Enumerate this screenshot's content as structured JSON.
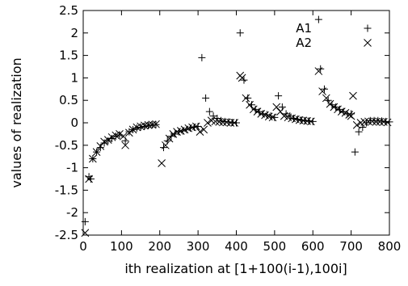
{
  "chart_data": {
    "type": "scatter",
    "xlabel": "ith realization at [1+100(i-1),100i]",
    "ylabel": "values of realization",
    "xlim": [
      0,
      800
    ],
    "ylim": [
      -2.5,
      2.5
    ],
    "xticks": [
      "0",
      "100",
      "200",
      "300",
      "400",
      "500",
      "600",
      "700",
      "800"
    ],
    "yticks": [
      "2.5",
      "2",
      "1.5",
      "1",
      "0.5",
      "0",
      "-0.5",
      "-1",
      "-1.5",
      "-2",
      "-2.5"
    ],
    "xtick_values": [
      0,
      100,
      200,
      300,
      400,
      500,
      600,
      700,
      800
    ],
    "ytick_values": [
      2.5,
      2,
      1.5,
      1,
      0.5,
      0,
      -0.5,
      -1,
      -1.5,
      -2,
      -2.5
    ],
    "grid": false,
    "legend_position": "top-right",
    "series": [
      {
        "name": "A1",
        "marker": "plus",
        "points": [
          [
            5,
            -2.2
          ],
          [
            15,
            -1.2
          ],
          [
            20,
            -1.25
          ],
          [
            25,
            -0.8
          ],
          [
            35,
            -0.65
          ],
          [
            45,
            -0.55
          ],
          [
            55,
            -0.45
          ],
          [
            65,
            -0.4
          ],
          [
            75,
            -0.35
          ],
          [
            85,
            -0.3
          ],
          [
            95,
            -0.27
          ],
          [
            110,
            -0.4
          ],
          [
            120,
            -0.2
          ],
          [
            130,
            -0.15
          ],
          [
            140,
            -0.12
          ],
          [
            150,
            -0.1
          ],
          [
            160,
            -0.08
          ],
          [
            170,
            -0.06
          ],
          [
            180,
            -0.05
          ],
          [
            190,
            -0.04
          ],
          [
            210,
            -0.55
          ],
          [
            220,
            -0.4
          ],
          [
            230,
            -0.3
          ],
          [
            240,
            -0.25
          ],
          [
            250,
            -0.2
          ],
          [
            260,
            -0.18
          ],
          [
            270,
            -0.15
          ],
          [
            280,
            -0.12
          ],
          [
            290,
            -0.1
          ],
          [
            300,
            -0.08
          ],
          [
            310,
            1.45
          ],
          [
            320,
            0.55
          ],
          [
            330,
            0.25
          ],
          [
            340,
            0.15
          ],
          [
            350,
            0.1
          ],
          [
            360,
            0.05
          ],
          [
            370,
            0.03
          ],
          [
            380,
            0.02
          ],
          [
            390,
            0.01
          ],
          [
            400,
            0.0
          ],
          [
            410,
            2.0
          ],
          [
            420,
            0.95
          ],
          [
            430,
            0.55
          ],
          [
            440,
            0.4
          ],
          [
            450,
            0.3
          ],
          [
            460,
            0.25
          ],
          [
            470,
            0.2
          ],
          [
            480,
            0.18
          ],
          [
            490,
            0.15
          ],
          [
            500,
            0.12
          ],
          [
            510,
            0.6
          ],
          [
            520,
            0.35
          ],
          [
            530,
            0.2
          ],
          [
            540,
            0.15
          ],
          [
            550,
            0.1
          ],
          [
            560,
            0.08
          ],
          [
            570,
            0.06
          ],
          [
            580,
            0.05
          ],
          [
            590,
            0.04
          ],
          [
            600,
            0.03
          ],
          [
            615,
            2.3
          ],
          [
            620,
            1.2
          ],
          [
            630,
            0.75
          ],
          [
            640,
            0.5
          ],
          [
            650,
            0.4
          ],
          [
            660,
            0.35
          ],
          [
            670,
            0.3
          ],
          [
            680,
            0.25
          ],
          [
            690,
            0.2
          ],
          [
            700,
            0.2
          ],
          [
            710,
            -0.65
          ],
          [
            720,
            -0.2
          ],
          [
            730,
            -0.1
          ],
          [
            740,
            0.0
          ],
          [
            750,
            0.05
          ],
          [
            760,
            0.05
          ],
          [
            770,
            0.05
          ],
          [
            780,
            0.04
          ],
          [
            790,
            0.03
          ],
          [
            800,
            0.02
          ]
        ]
      },
      {
        "name": "A2",
        "marker": "cross",
        "points": [
          [
            5,
            -2.45
          ],
          [
            15,
            -1.25
          ],
          [
            25,
            -0.8
          ],
          [
            35,
            -0.65
          ],
          [
            45,
            -0.52
          ],
          [
            55,
            -0.42
          ],
          [
            65,
            -0.38
          ],
          [
            75,
            -0.32
          ],
          [
            85,
            -0.28
          ],
          [
            95,
            -0.25
          ],
          [
            105,
            -0.3
          ],
          [
            110,
            -0.5
          ],
          [
            120,
            -0.22
          ],
          [
            130,
            -0.15
          ],
          [
            140,
            -0.1
          ],
          [
            150,
            -0.08
          ],
          [
            160,
            -0.06
          ],
          [
            170,
            -0.05
          ],
          [
            180,
            -0.04
          ],
          [
            190,
            -0.03
          ],
          [
            205,
            -0.9
          ],
          [
            215,
            -0.5
          ],
          [
            225,
            -0.35
          ],
          [
            235,
            -0.25
          ],
          [
            245,
            -0.2
          ],
          [
            255,
            -0.18
          ],
          [
            265,
            -0.15
          ],
          [
            275,
            -0.12
          ],
          [
            285,
            -0.1
          ],
          [
            295,
            -0.08
          ],
          [
            305,
            -0.2
          ],
          [
            315,
            -0.15
          ],
          [
            325,
            0.0
          ],
          [
            335,
            0.05
          ],
          [
            345,
            0.03
          ],
          [
            355,
            0.02
          ],
          [
            365,
            0.01
          ],
          [
            375,
            0.01
          ],
          [
            385,
            0.0
          ],
          [
            395,
            0.0
          ],
          [
            410,
            1.05
          ],
          [
            415,
            1.0
          ],
          [
            425,
            0.55
          ],
          [
            435,
            0.4
          ],
          [
            445,
            0.3
          ],
          [
            455,
            0.25
          ],
          [
            465,
            0.2
          ],
          [
            475,
            0.17
          ],
          [
            485,
            0.14
          ],
          [
            495,
            0.12
          ],
          [
            505,
            0.35
          ],
          [
            515,
            0.25
          ],
          [
            525,
            0.15
          ],
          [
            535,
            0.12
          ],
          [
            545,
            0.1
          ],
          [
            555,
            0.08
          ],
          [
            565,
            0.06
          ],
          [
            575,
            0.05
          ],
          [
            585,
            0.04
          ],
          [
            595,
            0.03
          ],
          [
            615,
            1.15
          ],
          [
            625,
            0.7
          ],
          [
            635,
            0.55
          ],
          [
            645,
            0.42
          ],
          [
            655,
            0.35
          ],
          [
            665,
            0.3
          ],
          [
            675,
            0.25
          ],
          [
            685,
            0.22
          ],
          [
            695,
            0.18
          ],
          [
            700,
            0.15
          ],
          [
            705,
            0.6
          ],
          [
            715,
            -0.05
          ],
          [
            725,
            0.0
          ],
          [
            735,
            0.02
          ],
          [
            745,
            0.03
          ],
          [
            755,
            0.03
          ],
          [
            765,
            0.02
          ],
          [
            775,
            0.02
          ],
          [
            785,
            0.02
          ],
          [
            795,
            0.01
          ]
        ]
      }
    ]
  }
}
